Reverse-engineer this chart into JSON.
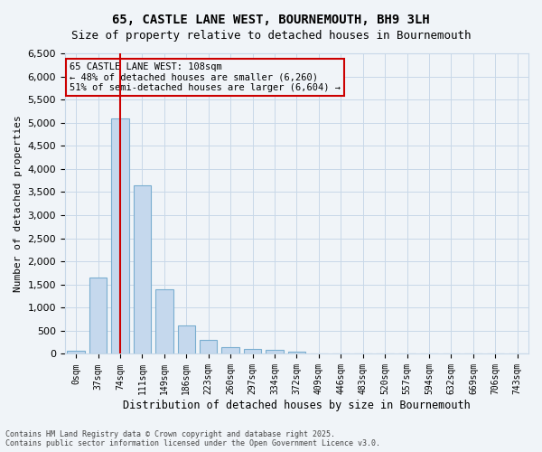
{
  "title_line1": "65, CASTLE LANE WEST, BOURNEMOUTH, BH9 3LH",
  "title_line2": "Size of property relative to detached houses in Bournemouth",
  "xlabel": "Distribution of detached houses by size in Bournemouth",
  "ylabel": "Number of detached properties",
  "bar_color": "#c5d8ed",
  "bar_edge_color": "#7aaed0",
  "bins": [
    "0sqm",
    "37sqm",
    "74sqm",
    "111sqm",
    "149sqm",
    "186sqm",
    "223sqm",
    "260sqm",
    "297sqm",
    "334sqm",
    "372sqm",
    "409sqm",
    "446sqm",
    "483sqm",
    "520sqm",
    "557sqm",
    "594sqm",
    "632sqm",
    "669sqm",
    "706sqm",
    "743sqm"
  ],
  "values": [
    75,
    1650,
    5100,
    3650,
    1400,
    610,
    300,
    155,
    110,
    80,
    55,
    0,
    0,
    0,
    0,
    0,
    0,
    0,
    0,
    0,
    0
  ],
  "vline_x": 2,
  "annotation_title": "65 CASTLE LANE WEST: 108sqm",
  "annotation_line2": "← 48% of detached houses are smaller (6,260)",
  "annotation_line3": "51% of semi-detached houses are larger (6,604) →",
  "vline_color": "#cc0000",
  "annotation_box_color": "#cc0000",
  "ylim": [
    0,
    6500
  ],
  "yticks": [
    0,
    500,
    1000,
    1500,
    2000,
    2500,
    3000,
    3500,
    4000,
    4500,
    5000,
    5500,
    6000,
    6500
  ],
  "footer_line1": "Contains HM Land Registry data © Crown copyright and database right 2025.",
  "footer_line2": "Contains public sector information licensed under the Open Government Licence v3.0.",
  "bg_color": "#f0f4f8",
  "grid_color": "#c8d8e8"
}
